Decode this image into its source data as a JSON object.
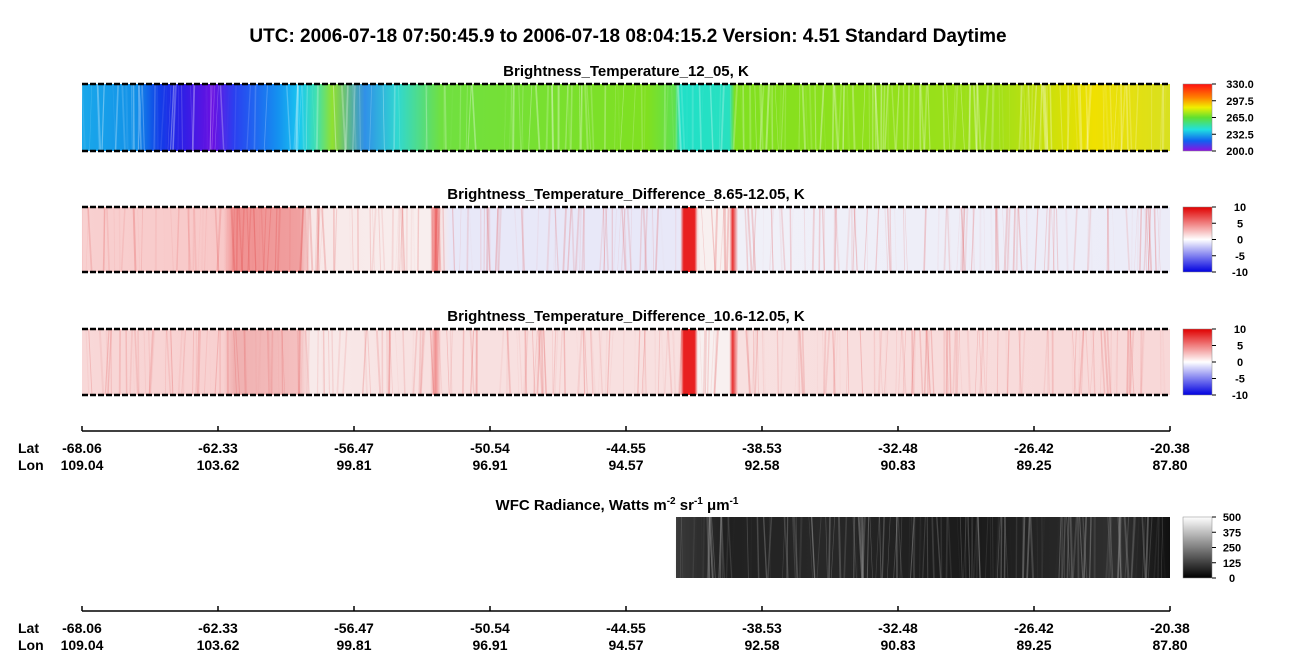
{
  "header": {
    "title": "UTC:  2006-07-18   07:50:45.9  to  2006-07-18   08:04:15.2    Version: 4.51  Standard Daytime"
  },
  "panels": [
    {
      "title": "Brightness_Temperature_12_05, K",
      "colorbar": [
        "330.0",
        "297.5",
        "265.0",
        "232.5",
        "200.0"
      ]
    },
    {
      "title": "Brightness_Temperature_Difference_8.65-12.05, K",
      "colorbar": [
        "10",
        "5",
        "0",
        "-5",
        "-10"
      ]
    },
    {
      "title": "Brightness_Temperature_Difference_10.6-12.05, K",
      "colorbar": [
        "10",
        "5",
        "0",
        "-5",
        "-10"
      ]
    }
  ],
  "wfc": {
    "title": [
      {
        "text": "WFC Radiance, Watts m",
        "sup": "-2"
      },
      {
        "text": " sr",
        "sup": "-1"
      },
      {
        "text": " μm",
        "sup": "-1"
      }
    ],
    "colorbar": [
      "500",
      "375",
      "250",
      "125",
      "0"
    ]
  },
  "axes": [
    {
      "lat_label": "Lat",
      "lon_label": "Lon",
      "lat": [
        "-68.06",
        "-62.33",
        "-56.47",
        "-50.54",
        "-44.55",
        "-38.53",
        "-32.48",
        "-26.42",
        "-20.38"
      ],
      "lon": [
        "109.04",
        "103.62",
        "99.81",
        "96.91",
        "94.57",
        "92.58",
        "90.83",
        "89.25",
        "87.80"
      ]
    },
    {
      "lat_label": "Lat",
      "lon_label": "Lon",
      "lat": [
        "-68.06",
        "-62.33",
        "-56.47",
        "-50.54",
        "-44.55",
        "-38.53",
        "-32.48",
        "-26.42",
        "-20.38"
      ],
      "lon": [
        "109.04",
        "103.62",
        "99.81",
        "96.91",
        "94.57",
        "92.58",
        "90.83",
        "89.25",
        "87.80"
      ]
    }
  ]
}
